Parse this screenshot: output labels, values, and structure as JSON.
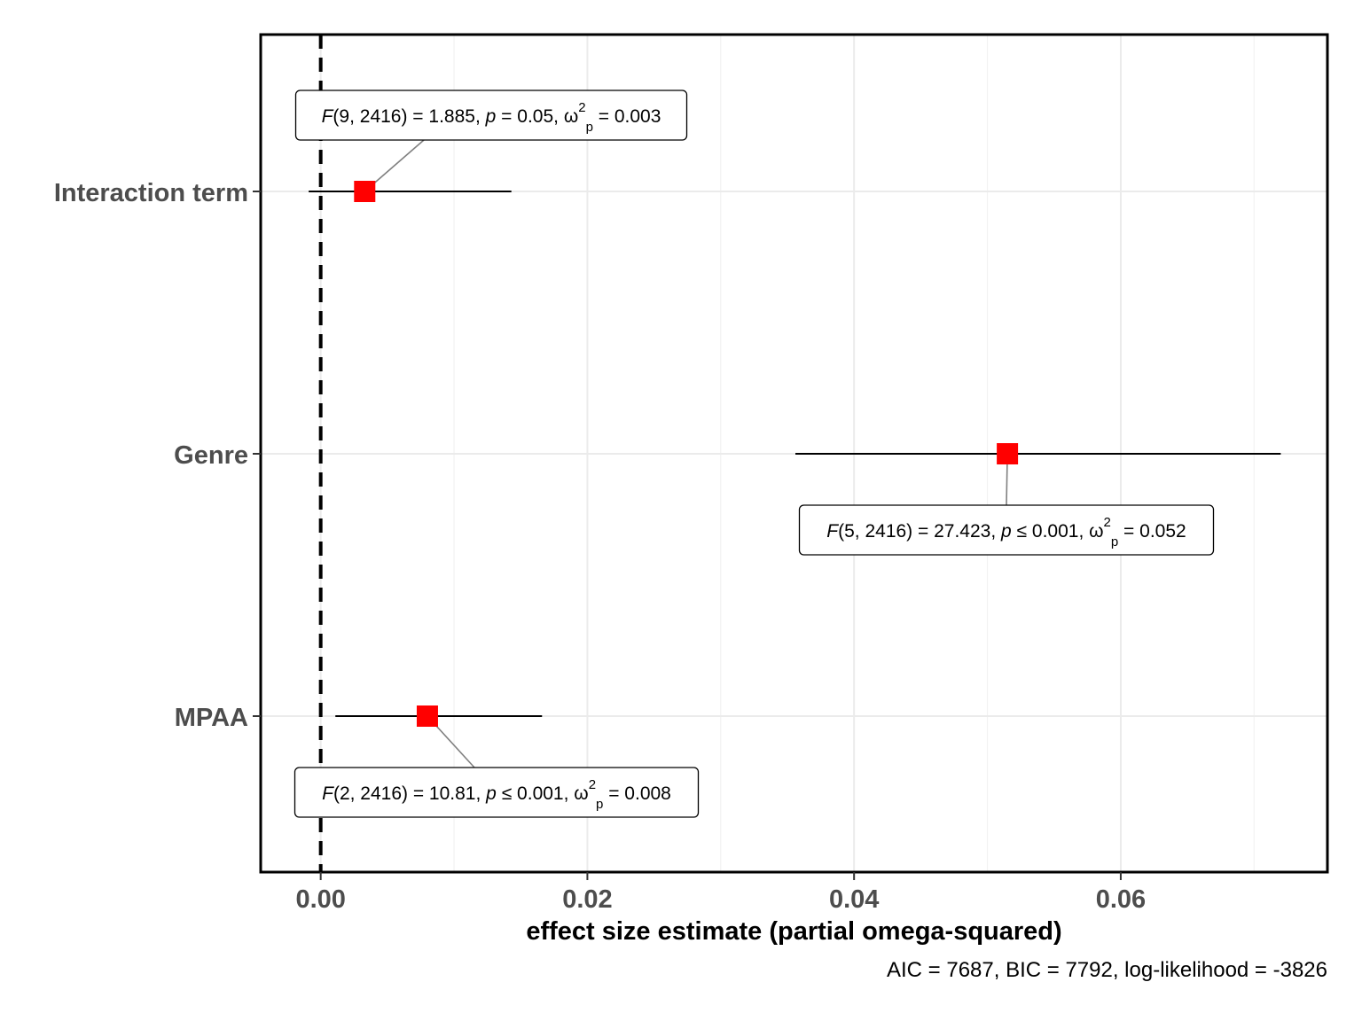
{
  "chart_data": {
    "type": "scatter",
    "subtype": "forest-plot",
    "xlabel": "effect size estimate (partial omega-squared)",
    "ylabel": "",
    "xlim": [
      -0.0045,
      0.0755
    ],
    "x_ticks": [
      0.0,
      0.02,
      0.04,
      0.06
    ],
    "x_tick_labels": [
      "0.00",
      "0.02",
      "0.04",
      "0.06"
    ],
    "reference_line_x": 0,
    "grid": true,
    "legend": "none",
    "point_color": "#ff0000",
    "caption": "AIC = 7687, BIC = 7792, log-likelihood = -3826",
    "terms": [
      {
        "name": "Interaction term",
        "estimate": 0.0033,
        "ci_low": -0.0009,
        "ci_high": 0.0143,
        "label": {
          "pos": "above",
          "df": "9, 2416",
          "f_value": "1.885",
          "p_op": "=",
          "p_value": "0.05",
          "omega_value": "0.003"
        }
      },
      {
        "name": "Genre",
        "estimate": 0.0515,
        "ci_low": 0.0356,
        "ci_high": 0.072,
        "label": {
          "pos": "below",
          "df": "5, 2416",
          "f_value": "27.423",
          "p_op": "≤",
          "p_value": "0.001",
          "omega_value": "0.052"
        }
      },
      {
        "name": "MPAA",
        "estimate": 0.008,
        "ci_low": 0.0011,
        "ci_high": 0.0166,
        "label": {
          "pos": "below",
          "df": "2, 2416",
          "f_value": "10.81",
          "p_op": "≤",
          "p_value": "0.001",
          "omega_value": "0.008"
        }
      }
    ]
  }
}
